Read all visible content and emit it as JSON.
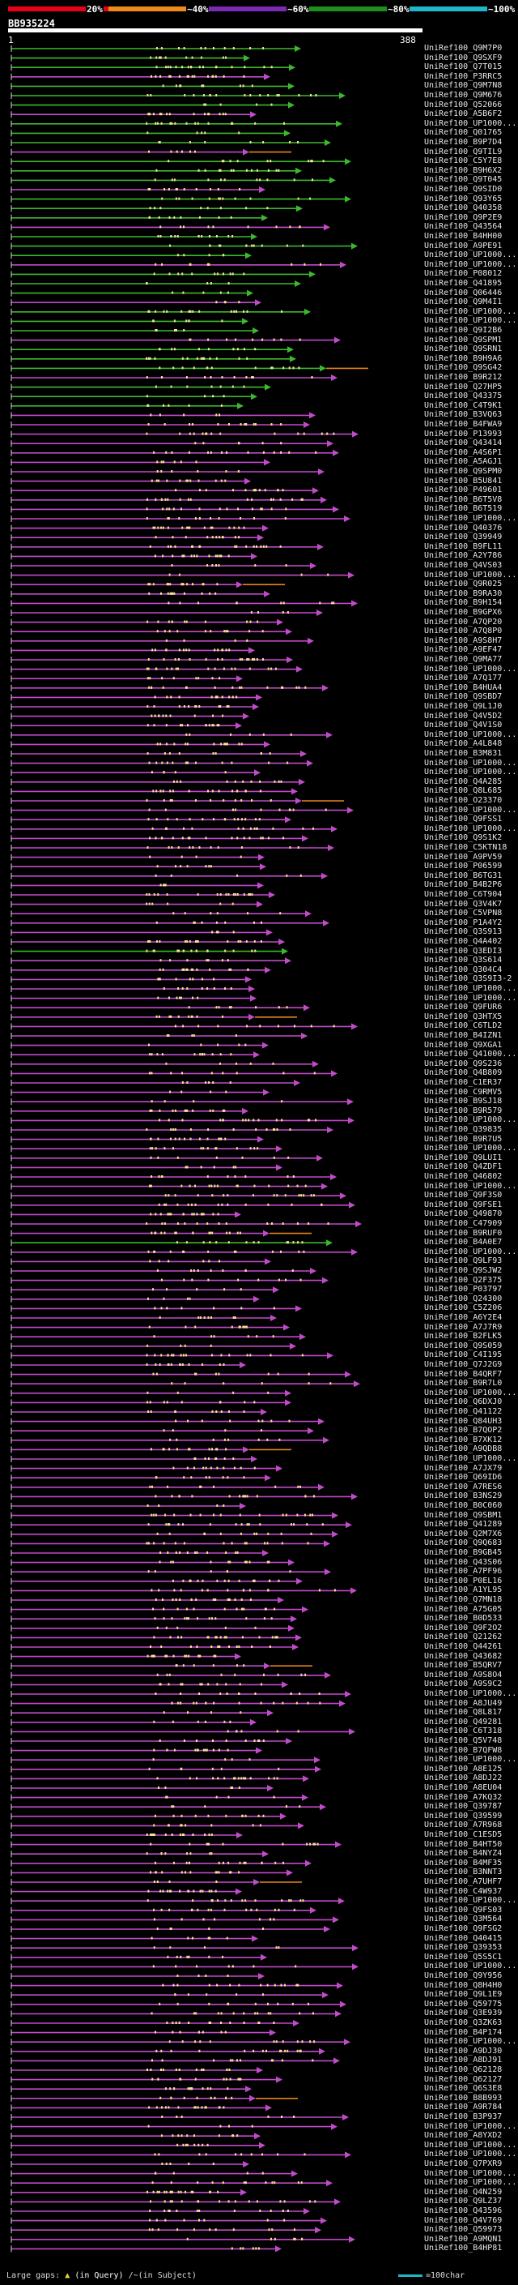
{
  "legend": {
    "segments": [
      {
        "label": "20%",
        "color": "#e8001b"
      },
      {
        "label": "~40%",
        "color": "#f08a1a"
      },
      {
        "label": "~60%",
        "color": "#7a2ab3"
      },
      {
        "label": "~80%",
        "color": "#1e8f1e"
      },
      {
        "label": "~100%",
        "color": "#1fb7c8"
      }
    ]
  },
  "query": {
    "id": "BB935224",
    "start": "1",
    "end": "388"
  },
  "footer": {
    "large_gaps": "Large gaps:",
    "in_query": "(in Query)",
    "in_subject": "/~(in Subject)",
    "scale_label": "=100char"
  },
  "colors": {
    "high": "#3db82e",
    "mid": "#c04bc8",
    "orange": "#e6841e",
    "dot": "#f3e39a"
  },
  "hits": [
    "UniRef100_Q9M7P0",
    "UniRef100_Q9SXF9",
    "UniRef100_Q7T015",
    "UniRef100_P3RRC5",
    "UniRef100_Q9M7N8",
    "UniRef100_Q9M676",
    "UniRef100_Q52066",
    "UniRef100_A5B6F2",
    "UniRef100_UP1000...",
    "UniRef100_Q01765",
    "UniRef100_B9P7D4",
    "UniRef100_Q9TIL9",
    "UniRef100_C5Y7E8",
    "UniRef100_B9H6X2",
    "UniRef100_Q9T045",
    "UniRef100_Q9SID0",
    "UniRef100_Q93Y65",
    "UniRef100_Q40358",
    "UniRef100_Q9P2E9",
    "UniRef100_Q43564",
    "UniRef100_B4HH00",
    "UniRef100_A9PE91",
    "UniRef100_UP1000...",
    "UniRef100_UP1000...",
    "UniRef100_P08012",
    "UniRef100_Q41895",
    "UniRef100_Q06446",
    "UniRef100_Q9M4I1",
    "UniRef100_UP1000...",
    "UniRef100_UP1000...",
    "UniRef100_Q9I2B6",
    "UniRef100_Q9SPM1",
    "UniRef100_Q9SRN1",
    "UniRef100_B9H9A6",
    "UniRef100_Q9SG42",
    "UniRef100_B9R212",
    "UniRef100_Q27HP5",
    "UniRef100_Q43375",
    "UniRef100_C4T9K1",
    "UniRef100_B3VQ63",
    "UniRef100_B4FWA9",
    "UniRef100_P13993",
    "UniRef100_Q43414",
    "UniRef100_A4S6P1",
    "UniRef100_A5AGJ1",
    "UniRef100_Q9SPM0",
    "UniRef100_B5U841",
    "UniRef100_P49601",
    "UniRef100_B6T5V8",
    "UniRef100_B6T519",
    "UniRef100_UP1000...",
    "UniRef100_Q40376",
    "UniRef100_Q39949",
    "UniRef100_B9FL11",
    "UniRef100_A2Y786",
    "UniRef100_Q4VS03",
    "UniRef100_UP1000...",
    "UniRef100_Q9R025",
    "UniRef100_B9RA30",
    "UniRef100_B9H154",
    "UniRef100_B9GPX6",
    "UniRef100_A7QP20",
    "UniRef100_A7Q8P0",
    "UniRef100_A9S8H7",
    "UniRef100_A9EF47",
    "UniRef100_Q9MA77",
    "UniRef100_UP1000...",
    "UniRef100_A7Q177",
    "UniRef100_B4HUA4",
    "UniRef100_Q9SBD7",
    "UniRef100_Q9L1J0",
    "UniRef100_Q4V5D2",
    "UniRef100_Q4V1S0",
    "UniRef100_UP1000...",
    "UniRef100_A4L848",
    "UniRef100_B3M831",
    "UniRef100_UP1000...",
    "UniRef100_UP1000...",
    "UniRef100_Q4A285",
    "UniRef100_Q8L685",
    "UniRef100_O23370",
    "UniRef100_UP1000...",
    "UniRef100_Q9FSS1",
    "UniRef100_UP1000...",
    "UniRef100_Q9S1K2",
    "UniRef100_C5KTN18",
    "UniRef100_A9PV59",
    "UniRef100_P06599",
    "UniRef100_B6TG31",
    "UniRef100_B4B2P6",
    "UniRef100_C6T904",
    "UniRef100_Q3V4K7",
    "UniRef100_C5VPN8",
    "UniRef100_P1A4Y2",
    "UniRef100_Q3S913",
    "UniRef100_Q4A402",
    "UniRef100_Q3EDI3",
    "UniRef100_Q3S614",
    "UniRef100_Q304C4",
    "UniRef100_Q3S9I3-2",
    "UniRef100_UP1000...",
    "UniRef100_UP1000...",
    "UniRef100_Q9FUR6",
    "UniRef100_Q3HTX5",
    "UniRef100_C6TLD2",
    "UniRef100_B4IZN1",
    "UniRef100_Q9XGA1",
    "UniRef100_Q41000...",
    "UniRef100_Q9S236",
    "UniRef100_Q4B809",
    "UniRef100_C1ER37",
    "UniRef100_C9RMV5",
    "UniRef100_B9SJ18",
    "UniRef100_B9R579",
    "UniRef100_UP1000...",
    "UniRef100_Q39835",
    "UniRef100_B9R7U5",
    "UniRef100_UP1000...",
    "UniRef100_Q9LUI1",
    "UniRef100_Q4ZDF1",
    "UniRef100_Q46802",
    "UniRef100_UP1000...",
    "UniRef100_Q9F3S0",
    "UniRef100_Q9FSE1",
    "UniRef100_Q49870",
    "UniRef100_C47909",
    "UniRef100_B9RUF0",
    "UniRef100_B4A0E7",
    "UniRef100_UP1000...",
    "UniRef100_Q9LF93",
    "UniRef100_Q9SJW2",
    "UniRef100_Q2F375",
    "UniRef100_P03797",
    "UniRef100_Q24300",
    "UniRef100_C5Z206",
    "UniRef100_A6Y2E4",
    "UniRef100_A7J7R9",
    "UniRef100_B2FLK5",
    "UniRef100_Q9S059",
    "UniRef100_C4I195",
    "UniRef100_Q7J2G9",
    "UniRef100_B4QRF7",
    "UniRef100_B9R7L0",
    "UniRef100_UP1000...",
    "UniRef100_Q6DXJ0",
    "UniRef100_Q41122",
    "UniRef100_Q84UH3",
    "UniRef100_B7QOP2",
    "UniRef100_B7XK12",
    "UniRef100_A9QDB8",
    "UniRef100_UP1000...",
    "UniRef100_A7JX79",
    "UniRef100_Q69ID6",
    "UniRef100_A7RES6",
    "UniRef100_B3NS29",
    "UniRef100_B0C060",
    "UniRef100_Q9SBM1",
    "UniRef100_Q41289",
    "UniRef100_Q2M7X6",
    "UniRef100_Q9Q683",
    "UniRef100_B9GB45",
    "UniRef100_Q43S06",
    "UniRef100_A7PF96",
    "UniRef100_P0EL16",
    "UniRef100_A1YL95",
    "UniRef100_Q7MN18",
    "UniRef100_A75G05",
    "UniRef100_B0D533",
    "UniRef100_Q9F2O2",
    "UniRef100_Q21262",
    "UniRef100_Q44261",
    "UniRef100_Q43682",
    "UniRef100_B5QRV7",
    "UniRef100_A9S8O4",
    "UniRef100_A9S9C2",
    "UniRef100_UP1000...",
    "UniRef100_A8JU49",
    "UniRef100_Q8L817",
    "UniRef100_Q49281",
    "UniRef100_C6T318",
    "UniRef100_Q5V748",
    "UniRef100_B7QFW8",
    "UniRef100_UP1000...",
    "UniRef100_A8E125",
    "UniRef100_A8DJ22",
    "UniRef100_A8EU04",
    "UniRef100_A7KQ32",
    "UniRef100_Q39787",
    "UniRef100_Q39599",
    "UniRef100_A7R968",
    "UniRef100_C1ESD5",
    "UniRef100_B4HT50",
    "UniRef100_B4NYZ4",
    "UniRef100_B4MF35",
    "UniRef100_B3NNT3",
    "UniRef100_A7UHF7",
    "UniRef100_C4W937",
    "UniRef100_UP1000...",
    "UniRef100_Q9FS03",
    "UniRef100_Q3M564",
    "UniRef100_Q9FSG2",
    "UniRef100_Q40415",
    "UniRef100_Q39353",
    "UniRef100_Q5S5C1",
    "UniRef100_UP1000...",
    "UniRef100_Q9Y956",
    "UniRef100_Q8H4H0",
    "UniRef100_Q9L1E9",
    "UniRef100_Q59775",
    "UniRef100_Q3E939",
    "UniRef100_Q3ZK63",
    "UniRef100_B4P174",
    "UniRef100_UP1000...",
    "UniRef100_A9DJ30",
    "UniRef100_A8DJ91",
    "UniRef100_Q62128",
    "UniRef100_Q62127",
    "UniRef100_Q6S3E8",
    "UniRef100_B8B993",
    "UniRef100_A9R784",
    "UniRef100_B3P937",
    "UniRef100_UP1000...",
    "UniRef100_A8YXD2",
    "UniRef100_UP1000...",
    "UniRef100_UP1000...",
    "UniRef100_Q7PXR9",
    "UniRef100_UP1000...",
    "UniRef100_UP1000...",
    "UniRef100_Q4N259",
    "UniRef100_Q9LZ37",
    "UniRef100_Q43596",
    "UniRef100_Q4V769",
    "UniRef100_Q59973",
    "UniRef100_A9MQN1",
    "UniRef100_B4HP81"
  ]
}
